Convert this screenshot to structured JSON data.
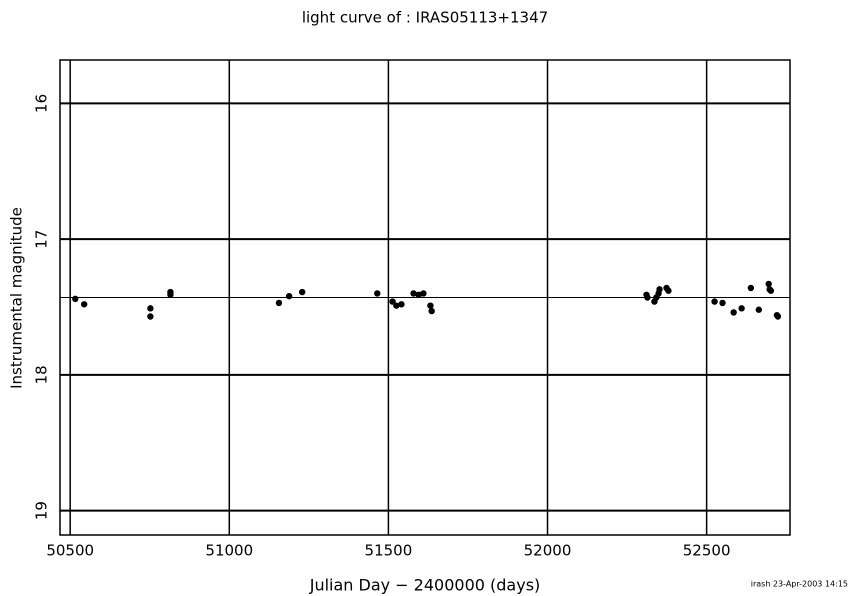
{
  "chart_data": {
    "type": "scatter",
    "title": "light curve of : IRAS05113+1347",
    "x_label": "Julian Day − 2400000 (days)",
    "y_label": "Instrumental magnitude",
    "footer": "irash 23-Apr-2003 14:15",
    "color": "#000000",
    "grid": true,
    "xlim": [
      50468,
      52762
    ],
    "ylim": [
      19.18,
      15.68
    ],
    "xticks": [
      50500,
      51000,
      51500,
      52000,
      52500
    ],
    "yticks": [
      16,
      17,
      18,
      19
    ],
    "reference_line": 17.43,
    "x": [
      50516,
      50544,
      50752,
      50752,
      50815,
      50815,
      51156,
      51188,
      51229,
      51465,
      51513,
      51525,
      51541,
      51579,
      51595,
      51610,
      51632,
      51636,
      52311,
      52314,
      52336,
      52342,
      52349,
      52352,
      52374,
      52380,
      52525,
      52550,
      52585,
      52610,
      52639,
      52664,
      52695,
      52698,
      52702,
      52721,
      52724
    ],
    "values": [
      17.44,
      17.48,
      17.51,
      17.57,
      17.39,
      17.41,
      17.47,
      17.42,
      17.39,
      17.4,
      17.46,
      17.49,
      17.48,
      17.4,
      17.41,
      17.4,
      17.49,
      17.53,
      17.41,
      17.43,
      17.46,
      17.43,
      17.4,
      17.37,
      17.36,
      17.38,
      17.46,
      17.47,
      17.54,
      17.51,
      17.36,
      17.52,
      17.33,
      17.37,
      17.38,
      17.56,
      17.57
    ]
  }
}
